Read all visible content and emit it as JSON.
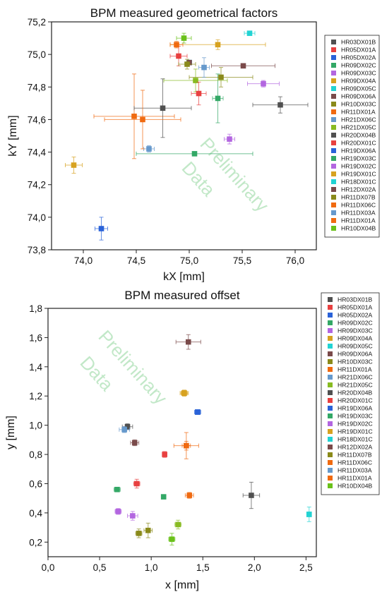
{
  "chart_data": [
    {
      "type": "scatter",
      "title": "BPM measured geometrical factors",
      "xlabel": "kX [mm]",
      "ylabel": "kY [mm]",
      "xlim": [
        73.7,
        76.2
      ],
      "ylim": [
        73.8,
        75.2
      ],
      "x_ticks": [
        74.0,
        74.5,
        75.0,
        75.5,
        76.0
      ],
      "x_tick_labels": [
        "74,0",
        "74,5",
        "75,0",
        "75,5",
        "76,0"
      ],
      "y_ticks": [
        73.8,
        74.0,
        74.2,
        74.4,
        74.6,
        74.8,
        75.0,
        75.2
      ],
      "y_tick_labels": [
        "73,8",
        "74,0",
        "74,2",
        "74,4",
        "74,6",
        "74,8",
        "75,0",
        "75,2"
      ],
      "watermark": [
        "Preliminary",
        "Data"
      ],
      "legend_position": "right",
      "series": [
        {
          "name": "HR03DX01B",
          "color": "#505050",
          "x": 75.86,
          "y": 74.69,
          "xerr": 0.26,
          "yerr": 0.05
        },
        {
          "name": "HR05DX01A",
          "color": "#e84040",
          "x": 74.9,
          "y": 74.99,
          "xerr": 0.08,
          "yerr": 0.06
        },
        {
          "name": "HR05DX02A",
          "color": "#2a62d8",
          "x": 74.17,
          "y": 73.93,
          "xerr": 0.06,
          "yerr": 0.07
        },
        {
          "name": "HR09DX02C",
          "color": "#33a866",
          "x": 75.27,
          "y": 74.73,
          "xerr": 0.05,
          "yerr": 0.15
        },
        {
          "name": "HR09DX03C",
          "color": "#b366e0",
          "x": 75.7,
          "y": 74.82,
          "xerr": 0.15,
          "yerr": 0.02
        },
        {
          "name": "HR09DX04A",
          "color": "#d7a220",
          "x": 75.27,
          "y": 75.06,
          "xerr": 0.45,
          "yerr": 0.03
        },
        {
          "name": "HR09DX05C",
          "color": "#22d3d3",
          "x": 75.57,
          "y": 75.13,
          "xerr": 0.05,
          "yerr": 0.01
        },
        {
          "name": "HR09DX06A",
          "color": "#7a4a4a",
          "x": 75.51,
          "y": 74.93,
          "xerr": 0.3,
          "yerr": 0.01
        },
        {
          "name": "HR10DX03C",
          "color": "#8a8a1a",
          "x": 75.3,
          "y": 74.86,
          "xerr": 0.3,
          "yerr": 0.06
        },
        {
          "name": "HR11DX01A",
          "color": "#f06a10",
          "x": 74.48,
          "y": 74.62,
          "xerr": 0.38,
          "yerr": 0.26
        },
        {
          "name": "HR21DX06C",
          "color": "#6699cc",
          "x": 75.14,
          "y": 74.92,
          "xerr": 0.05,
          "yerr": 0.06
        },
        {
          "name": "HR21DX05C",
          "color": "#88bb22",
          "x": 75.06,
          "y": 74.84,
          "xerr": 0.3,
          "yerr": 0.07
        },
        {
          "name": "HR20DX04B",
          "color": "#505050",
          "x": 74.75,
          "y": 74.67,
          "xerr": 0.27,
          "yerr": 0.18
        },
        {
          "name": "HR20DX01C",
          "color": "#e84040",
          "x": 75.09,
          "y": 74.76,
          "xerr": 0.07,
          "yerr": 0.07
        },
        {
          "name": "HR19DX06A",
          "color": "#2a62d8",
          "x": 75.0,
          "y": 74.95,
          "xerr": 0.0,
          "yerr": 0.0
        },
        {
          "name": "HR19DX03C",
          "color": "#33a866",
          "x": 75.05,
          "y": 74.39,
          "xerr": 0.55,
          "yerr": 0.0
        },
        {
          "name": "HR19DX02C",
          "color": "#b366e0",
          "x": 75.38,
          "y": 74.48,
          "xerr": 0.05,
          "yerr": 0.03
        },
        {
          "name": "HR19DX01C",
          "color": "#d7a220",
          "x": 73.91,
          "y": 74.32,
          "xerr": 0.08,
          "yerr": 0.05
        },
        {
          "name": "HR18DX01C",
          "color": "#22d3d3",
          "x": 75.0,
          "y": 74.95,
          "xerr": 0.0,
          "yerr": 0.0
        },
        {
          "name": "HR12DX02A",
          "color": "#7a4a4a",
          "x": 75.0,
          "y": 74.95,
          "xerr": 0.0,
          "yerr": 0.0
        },
        {
          "name": "HR11DX07B",
          "color": "#8a8a1a",
          "x": 74.98,
          "y": 74.94,
          "xerr": 0.08,
          "yerr": 0.03
        },
        {
          "name": "HR11DX06C",
          "color": "#f06a10",
          "x": 74.88,
          "y": 75.06,
          "xerr": 0.06,
          "yerr": 0.02
        },
        {
          "name": "HR11DX03A",
          "color": "#6699cc",
          "x": 74.62,
          "y": 74.42,
          "xerr": 0.05,
          "yerr": 0.02
        },
        {
          "name": "HR11DX01A",
          "color": "#f06a10",
          "x": 74.56,
          "y": 74.6,
          "xerr": 0.36,
          "yerr": 0.18
        },
        {
          "name": "HR10DX04B",
          "color": "#6ac11a",
          "x": 74.95,
          "y": 75.1,
          "xerr": 0.07,
          "yerr": 0.03
        }
      ]
    },
    {
      "type": "scatter",
      "title": "BPM measured offset",
      "xlabel": "x [mm]",
      "ylabel": "y [mm]",
      "xlim": [
        0.0,
        2.6
      ],
      "ylim": [
        0.1,
        1.8
      ],
      "x_ticks": [
        0.0,
        0.5,
        1.0,
        1.5,
        2.0,
        2.5
      ],
      "x_tick_labels": [
        "0,0",
        "0,5",
        "1,0",
        "1,5",
        "2,0",
        "2,5"
      ],
      "y_ticks": [
        0.2,
        0.4,
        0.6,
        0.8,
        1.0,
        1.2,
        1.4,
        1.6,
        1.8
      ],
      "y_tick_labels": [
        "0,2",
        "0,4",
        "0,6",
        "0,8",
        "1,0",
        "1,2",
        "1,4",
        "1,6",
        "1,8"
      ],
      "watermark": [
        "Preliminary",
        "Data"
      ],
      "legend_position": "right",
      "series": [
        {
          "name": "HR03DX01B",
          "color": "#505050",
          "x": 1.97,
          "y": 0.52,
          "xerr": 0.08,
          "yerr": 0.09
        },
        {
          "name": "HR05DX01A",
          "color": "#e84040",
          "x": 0.86,
          "y": 0.6,
          "xerr": 0.03,
          "yerr": 0.03
        },
        {
          "name": "HR05DX02A",
          "color": "#2a62d8",
          "x": 1.45,
          "y": 1.09,
          "xerr": 0.03,
          "yerr": 0.01
        },
        {
          "name": "HR09DX02C",
          "color": "#33a866",
          "x": 0.67,
          "y": 0.56,
          "xerr": 0.03,
          "yerr": 0.01
        },
        {
          "name": "HR09DX03C",
          "color": "#b366e0",
          "x": 0.68,
          "y": 0.41,
          "xerr": 0.03,
          "yerr": 0.02
        },
        {
          "name": "HR09DX04A",
          "color": "#d7a220",
          "x": 1.32,
          "y": 1.22,
          "xerr": 0.04,
          "yerr": 0.02
        },
        {
          "name": "HR09DX05C",
          "color": "#22d3d3",
          "x": 2.53,
          "y": 0.39,
          "xerr": 0.02,
          "yerr": 0.05
        },
        {
          "name": "HR09DX06A",
          "color": "#7a4a4a",
          "x": 1.36,
          "y": 1.57,
          "xerr": 0.12,
          "yerr": 0.05
        },
        {
          "name": "HR10DX03C",
          "color": "#8a8a1a",
          "x": 0.97,
          "y": 0.28,
          "xerr": 0.04,
          "yerr": 0.05
        },
        {
          "name": "HR11DX01A",
          "color": "#f06a10",
          "x": 1.34,
          "y": 0.86,
          "xerr": 0.12,
          "yerr": 0.09
        },
        {
          "name": "HR21DX06C",
          "color": "#6699cc",
          "x": 1.45,
          "y": 1.09,
          "xerr": 0.02,
          "yerr": 0.01
        },
        {
          "name": "HR21DX05C",
          "color": "#88bb22",
          "x": 1.26,
          "y": 0.32,
          "xerr": 0.03,
          "yerr": 0.03
        },
        {
          "name": "HR20DX04B",
          "color": "#505050",
          "x": 0.77,
          "y": 0.99,
          "xerr": 0.05,
          "yerr": 0.02
        },
        {
          "name": "HR20DX01C",
          "color": "#e84040",
          "x": 1.13,
          "y": 0.8,
          "xerr": 0.02,
          "yerr": 0.02
        },
        {
          "name": "HR19DX06A",
          "color": "#2a62d8",
          "x": 1.45,
          "y": 1.09,
          "xerr": 0.02,
          "yerr": 0.01
        },
        {
          "name": "HR19DX03C",
          "color": "#33a866",
          "x": 1.12,
          "y": 0.51,
          "xerr": 0.02,
          "yerr": 0.01
        },
        {
          "name": "HR19DX02C",
          "color": "#b366e0",
          "x": 0.82,
          "y": 0.38,
          "xerr": 0.05,
          "yerr": 0.03
        },
        {
          "name": "HR19DX01C",
          "color": "#d7a220",
          "x": 1.32,
          "y": 1.22,
          "xerr": 0.03,
          "yerr": 0.02
        },
        {
          "name": "HR18DX01C",
          "color": "#22d3d3",
          "x": 2.53,
          "y": 0.39,
          "xerr": 0.0,
          "yerr": 0.0
        },
        {
          "name": "HR12DX02A",
          "color": "#7a4a4a",
          "x": 0.84,
          "y": 0.88,
          "xerr": 0.04,
          "yerr": 0.02
        },
        {
          "name": "HR11DX07B",
          "color": "#8a8a1a",
          "x": 0.88,
          "y": 0.26,
          "xerr": 0.03,
          "yerr": 0.03
        },
        {
          "name": "HR11DX06C",
          "color": "#f06a10",
          "x": 1.37,
          "y": 0.52,
          "xerr": 0.04,
          "yerr": 0.02
        },
        {
          "name": "HR11DX03A",
          "color": "#6699cc",
          "x": 0.74,
          "y": 0.97,
          "xerr": 0.05,
          "yerr": 0.02
        },
        {
          "name": "HR11DX01A",
          "color": "#f06a10",
          "x": 1.34,
          "y": 0.86,
          "xerr": 0.04,
          "yerr": 0.03
        },
        {
          "name": "HR10DX04B",
          "color": "#6ac11a",
          "x": 1.2,
          "y": 0.22,
          "xerr": 0.03,
          "yerr": 0.04
        }
      ]
    }
  ]
}
